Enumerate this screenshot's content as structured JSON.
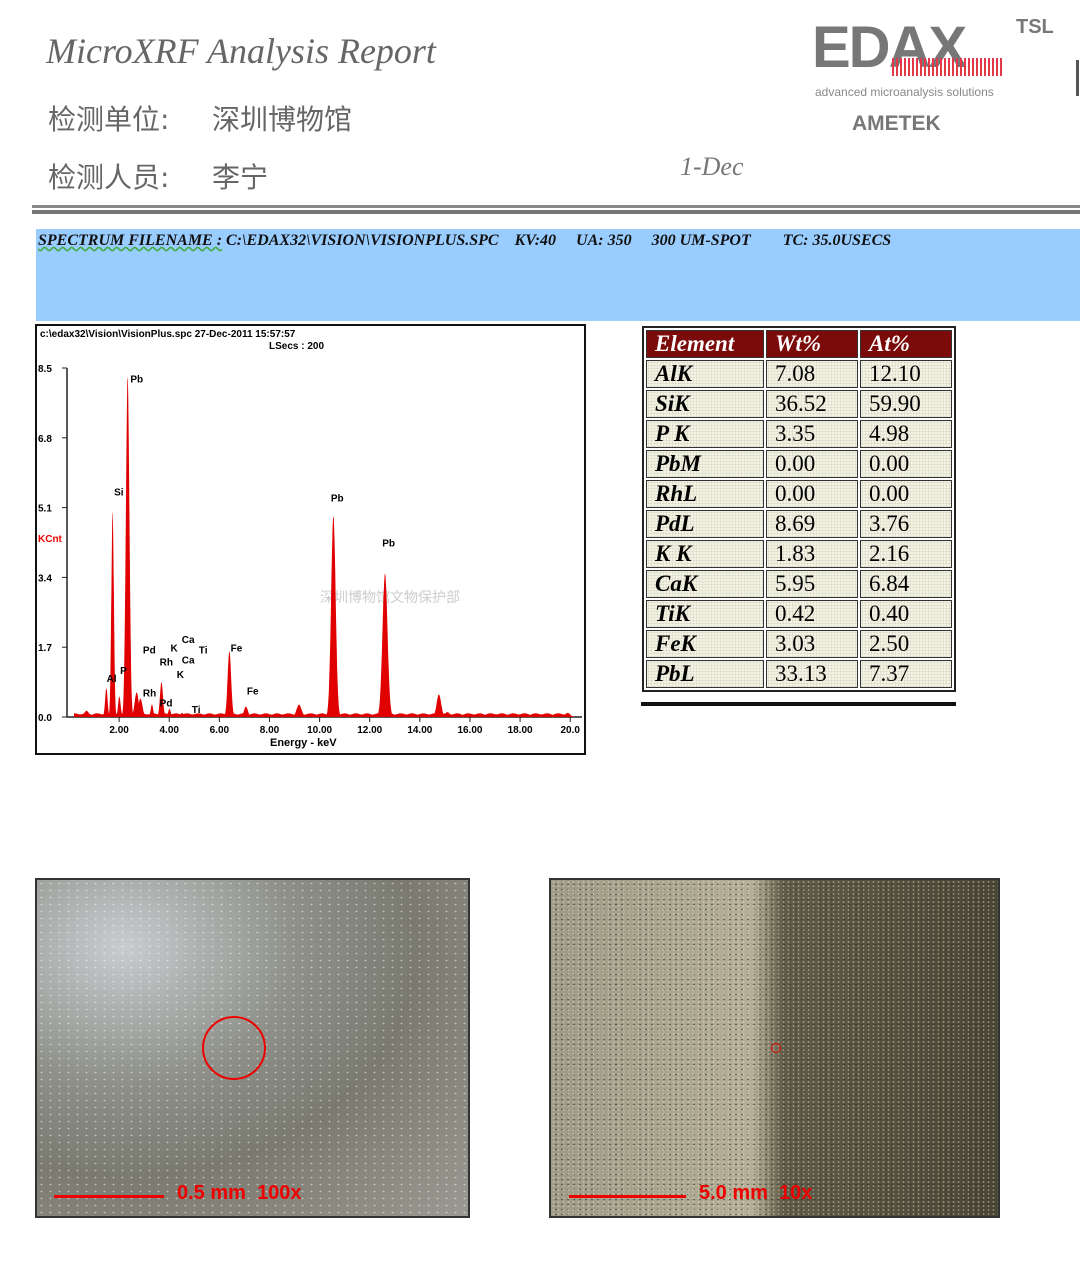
{
  "header": {
    "title": "MicroXRF Analysis Report",
    "unit_label": "检测单位:",
    "unit_value": "深圳博物馆",
    "inspector_label": "检测人员:",
    "inspector_value": "李宁",
    "date_fragment": "1-Dec"
  },
  "logo": {
    "brand": "EDAX",
    "tsl": "TSL",
    "tagline": "advanced microanalysis solutions",
    "parent": "AMETEK"
  },
  "spectrum_info": {
    "filename_label": "SPECTRUM FILENAME :",
    "filename": "C:\\EDAX32\\VISION\\VISIONPLUS.SPC",
    "kv": "KV:40",
    "ua": "UA: 350",
    "spot": "300 UM-SPOT",
    "tc": "TC: 35.0USECS"
  },
  "chart_data": {
    "type": "line",
    "title": "c:\\edax32\\Vision\\VisionPlus.spc  27-Dec-2011 15:57:57",
    "subtitle": "LSecs : 200",
    "xlabel": "Energy - keV",
    "ylabel": "KCnt",
    "xlim": [
      0,
      20
    ],
    "ylim": [
      0,
      8.5
    ],
    "x_ticks": [
      "2.00",
      "4.00",
      "6.00",
      "8.00",
      "10.00",
      "12.00",
      "14.00",
      "16.00",
      "18.00",
      "20.0"
    ],
    "y_ticks": [
      "0.0",
      "1.7",
      "3.4",
      "5.1",
      "6.8",
      "8.5"
    ],
    "series_color": "#e00000",
    "watermark": "深圳博物馆文物保护部",
    "peaks": [
      {
        "energy": 0.7,
        "kcnt": 0.15,
        "width": 0.1
      },
      {
        "energy": 1.49,
        "kcnt": 0.7,
        "width": 0.05
      },
      {
        "energy": 1.74,
        "kcnt": 5.0,
        "width": 0.05
      },
      {
        "energy": 2.01,
        "kcnt": 0.5,
        "width": 0.05
      },
      {
        "energy": 2.34,
        "kcnt": 8.3,
        "width": 0.07
      },
      {
        "energy": 2.7,
        "kcnt": 0.6,
        "width": 0.08
      },
      {
        "energy": 2.85,
        "kcnt": 0.45,
        "width": 0.08
      },
      {
        "energy": 3.31,
        "kcnt": 0.3,
        "width": 0.05
      },
      {
        "energy": 3.69,
        "kcnt": 0.85,
        "width": 0.06
      },
      {
        "energy": 4.01,
        "kcnt": 0.2,
        "width": 0.05
      },
      {
        "energy": 4.51,
        "kcnt": 0.1,
        "width": 0.06
      },
      {
        "energy": 6.4,
        "kcnt": 1.6,
        "width": 0.07
      },
      {
        "energy": 7.06,
        "kcnt": 0.25,
        "width": 0.08
      },
      {
        "energy": 9.18,
        "kcnt": 0.3,
        "width": 0.1
      },
      {
        "energy": 10.55,
        "kcnt": 4.9,
        "width": 0.09
      },
      {
        "energy": 12.61,
        "kcnt": 3.5,
        "width": 0.1
      },
      {
        "energy": 14.76,
        "kcnt": 0.55,
        "width": 0.09
      },
      {
        "energy": 15.1,
        "kcnt": 0.12,
        "width": 0.1
      },
      {
        "energy": 19.9,
        "kcnt": 0.1,
        "width": 0.1
      }
    ],
    "annotations": [
      {
        "text": "Pb",
        "energy": 2.45,
        "kcnt": 8.15
      },
      {
        "text": "Si",
        "energy": 1.8,
        "kcnt": 5.4
      },
      {
        "text": "Pb",
        "energy": 10.45,
        "kcnt": 5.25
      },
      {
        "text": "Pb",
        "energy": 12.5,
        "kcnt": 4.15
      },
      {
        "text": "Al",
        "energy": 1.5,
        "kcnt": 0.85
      },
      {
        "text": "P",
        "energy": 2.0,
        "kcnt": 1.05
      },
      {
        "text": "Pd",
        "energy": 2.95,
        "kcnt": 1.55
      },
      {
        "text": "Rh",
        "energy": 2.9,
        "kcnt": 1.25
      },
      {
        "text": "Rh",
        "energy": 2.95,
        "kcnt": 0.5
      },
      {
        "text": "Pd",
        "energy": 3.1,
        "kcnt": 0.25
      },
      {
        "text": "K",
        "energy": 3.5,
        "kcnt": 0.95
      },
      {
        "text": "K",
        "energy": 3.25,
        "kcnt": 1.3
      },
      {
        "text": "Ca",
        "energy": 3.9,
        "kcnt": 1.8
      },
      {
        "text": "Ca",
        "energy": 4.1,
        "kcnt": 1.3
      },
      {
        "text": "Ti",
        "energy": 4.5,
        "kcnt": 1.55
      },
      {
        "text": "Ti",
        "energy": 4.9,
        "kcnt": 0.1
      },
      {
        "text": "Fe",
        "energy": 6.45,
        "kcnt": 1.6
      },
      {
        "text": "Fe",
        "energy": 7.1,
        "kcnt": 0.55
      }
    ]
  },
  "results_table": {
    "headers": [
      "Element",
      "Wt%",
      "At%"
    ],
    "rows": [
      [
        "AlK",
        "7.08",
        "12.10"
      ],
      [
        "SiK",
        "36.52",
        "59.90"
      ],
      [
        "P K",
        "3.35",
        "4.98"
      ],
      [
        "PbM",
        "0.00",
        "0.00"
      ],
      [
        "RhL",
        "0.00",
        "0.00"
      ],
      [
        "PdL",
        "8.69",
        "3.76"
      ],
      [
        "K K",
        "1.83",
        "2.16"
      ],
      [
        "CaK",
        "5.95",
        "6.84"
      ],
      [
        "TiK",
        "0.42",
        "0.40"
      ],
      [
        "FeK",
        "3.03",
        "2.50"
      ],
      [
        "PbL",
        "33.13",
        "7.37"
      ]
    ]
  },
  "photos": [
    {
      "scale": "0.5 mm",
      "magnification": "100x"
    },
    {
      "scale": "5.0 mm",
      "magnification": "10x"
    }
  ]
}
